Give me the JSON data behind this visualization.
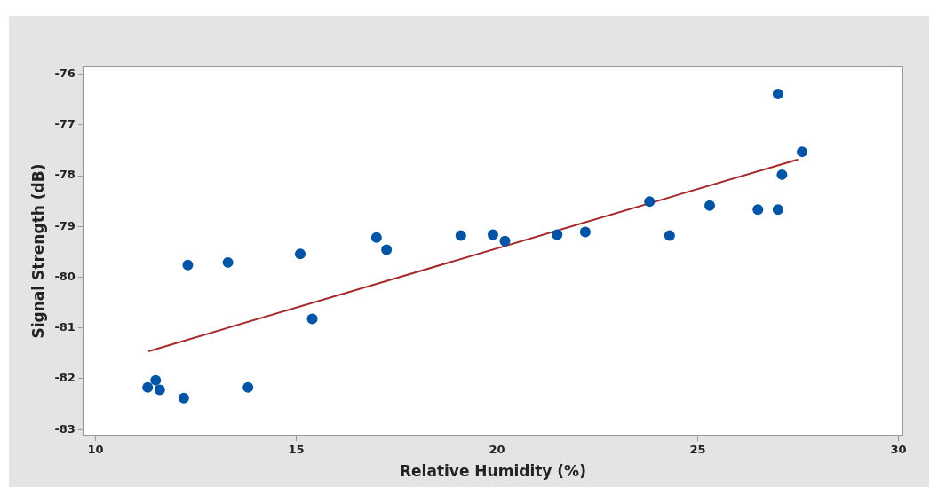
{
  "chart_data": {
    "type": "scatter",
    "xlabel": "Relative Humidity (%)",
    "ylabel": "Signal Strength (dB)",
    "xlim": [
      9.7,
      30.1
    ],
    "ylim": [
      -83.12,
      -75.85
    ],
    "xticks": [
      10,
      15,
      20,
      25,
      30
    ],
    "yticks": [
      -83,
      -82,
      -81,
      -80,
      -79,
      -78,
      -77,
      -76
    ],
    "grid": false,
    "legend": false,
    "series": [
      {
        "marker": "circle",
        "color": "#0054a6",
        "x": [
          11.3,
          11.5,
          11.6,
          12.2,
          12.3,
          13.3,
          13.8,
          15.1,
          15.4,
          17.0,
          17.25,
          19.1,
          19.9,
          20.2,
          21.5,
          22.2,
          23.8,
          24.3,
          25.3,
          26.5,
          27.0,
          27.0,
          27.1,
          27.6
        ],
        "values": [
          -82.17,
          -82.03,
          -82.22,
          -82.38,
          -79.76,
          -79.71,
          -82.17,
          -79.54,
          -80.82,
          -79.22,
          -79.46,
          -79.18,
          -79.16,
          -79.29,
          -79.16,
          -79.11,
          -78.51,
          -79.18,
          -78.59,
          -78.67,
          -78.67,
          -76.39,
          -77.98,
          -77.53
        ]
      },
      {
        "type": "line",
        "color": "#a52a2a",
        "x": [
          11.32,
          27.5
        ],
        "values": [
          -81.46,
          -77.68
        ]
      }
    ]
  }
}
